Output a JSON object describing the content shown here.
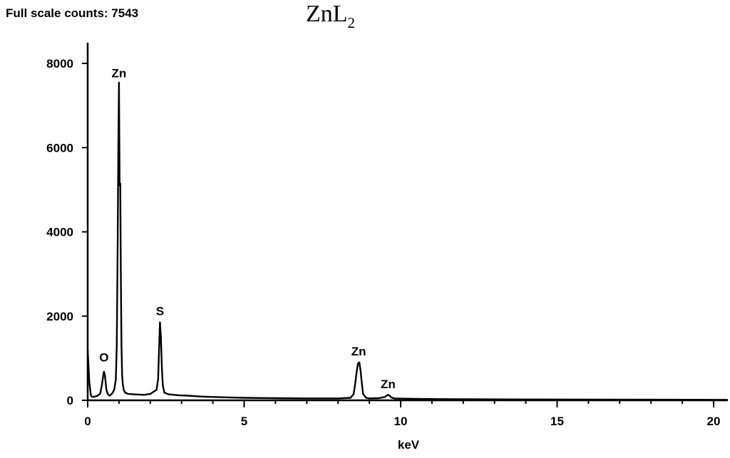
{
  "header": {
    "full_scale_label": "Full scale counts: 7543"
  },
  "title": {
    "main": "ZnL",
    "subscript": "2"
  },
  "chart_data": {
    "type": "line",
    "title": "ZnL2",
    "xlabel": "keV",
    "ylabel": "",
    "xlim": [
      0,
      20.5
    ],
    "ylim": [
      0,
      8500
    ],
    "xticks": [
      0,
      5,
      10,
      15,
      20
    ],
    "xtick_labels": [
      "0",
      "5",
      "10",
      "15",
      "20"
    ],
    "yticks": [
      0,
      2000,
      4000,
      6000,
      8000
    ],
    "ytick_labels": [
      "0",
      "2000",
      "4000",
      "6000",
      "8000"
    ],
    "grid": false,
    "series": [
      {
        "x": [
          0.0,
          0.02,
          0.05,
          0.1,
          0.15,
          0.2,
          0.3,
          0.4,
          0.45,
          0.5,
          0.52,
          0.55,
          0.6,
          0.65,
          0.7,
          0.75,
          0.8,
          0.85,
          0.9,
          0.93,
          0.96,
          0.98,
          1.0,
          1.01,
          1.02,
          1.04,
          1.06,
          1.08,
          1.1,
          1.12,
          1.15,
          1.2,
          1.3,
          1.5,
          1.8,
          2.0,
          2.2,
          2.25,
          2.28,
          2.31,
          2.34,
          2.37,
          2.4,
          2.45,
          2.6,
          2.9,
          3.2,
          3.6,
          4.0,
          4.5,
          5.0,
          6.0,
          7.0,
          8.0,
          8.4,
          8.5,
          8.55,
          8.6,
          8.64,
          8.68,
          8.72,
          8.76,
          8.8,
          8.9,
          9.0,
          9.3,
          9.5,
          9.55,
          9.6,
          9.65,
          9.7,
          9.8,
          10.0,
          10.5,
          11.0,
          12.0,
          14.0,
          16.0,
          18.0,
          20.5
        ],
        "y": [
          1200,
          900,
          450,
          120,
          80,
          85,
          100,
          160,
          350,
          600,
          680,
          600,
          250,
          140,
          110,
          140,
          180,
          260,
          500,
          1300,
          3800,
          6000,
          7543,
          6400,
          5100,
          5150,
          3000,
          1300,
          600,
          400,
          250,
          180,
          150,
          140,
          130,
          150,
          250,
          500,
          1200,
          1850,
          1500,
          800,
          350,
          180,
          140,
          120,
          110,
          90,
          80,
          70,
          60,
          50,
          45,
          45,
          60,
          150,
          400,
          700,
          880,
          900,
          700,
          400,
          150,
          60,
          45,
          50,
          80,
          110,
          130,
          110,
          70,
          45,
          40,
          35,
          30,
          25,
          20,
          18,
          15,
          12
        ]
      }
    ],
    "annotations": [
      {
        "text": "Zn",
        "x": 1.0,
        "y": 7600
      },
      {
        "text": "O",
        "x": 0.52,
        "y": 850
      },
      {
        "text": "S",
        "x": 2.31,
        "y": 1950
      },
      {
        "text": "Zn",
        "x": 8.66,
        "y": 1000
      },
      {
        "text": "Zn",
        "x": 9.6,
        "y": 220
      }
    ]
  }
}
